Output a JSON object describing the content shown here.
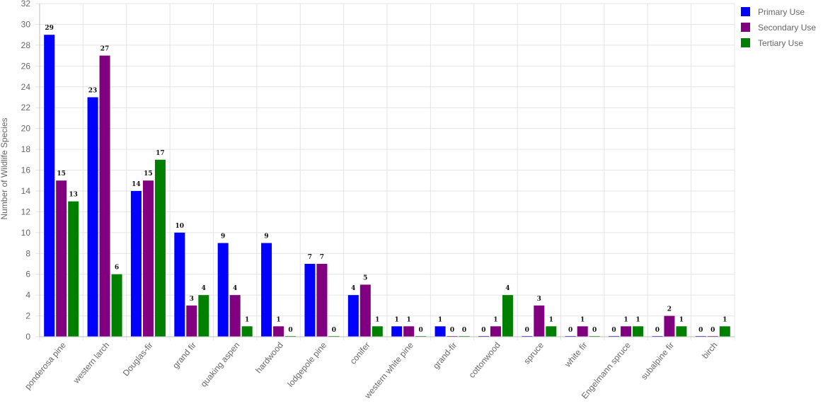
{
  "chart_data": {
    "type": "bar",
    "title": "",
    "xlabel": "",
    "ylabel": "Number of Wildlife Species",
    "ylim": [
      0,
      32
    ],
    "ytick_step": 2,
    "grid": true,
    "legend_position": "top-right",
    "categories": [
      "ponderosa pine",
      "western larch",
      "Douglas-fir",
      "grand fir",
      "quaking aspen",
      "hardwood",
      "lodgepole pine",
      "conifer",
      "western white pine",
      "grand-fir",
      "cottonwood",
      "spruce",
      "white fir",
      "Engelmann spruce",
      "subalpine fir",
      "birch"
    ],
    "series": [
      {
        "name": "Primary Use",
        "color": "#0000ff",
        "values": [
          29,
          23,
          14,
          10,
          9,
          9,
          7,
          4,
          1,
          1,
          0,
          0,
          0,
          0,
          0,
          0
        ]
      },
      {
        "name": "Secondary Use",
        "color": "#800080",
        "values": [
          15,
          27,
          15,
          3,
          4,
          1,
          7,
          5,
          1,
          0,
          1,
          3,
          1,
          1,
          2,
          0
        ]
      },
      {
        "name": "Tertiary Use",
        "color": "#008000",
        "values": [
          13,
          6,
          17,
          4,
          1,
          0,
          0,
          1,
          0,
          0,
          4,
          1,
          0,
          1,
          1,
          1
        ]
      }
    ]
  }
}
